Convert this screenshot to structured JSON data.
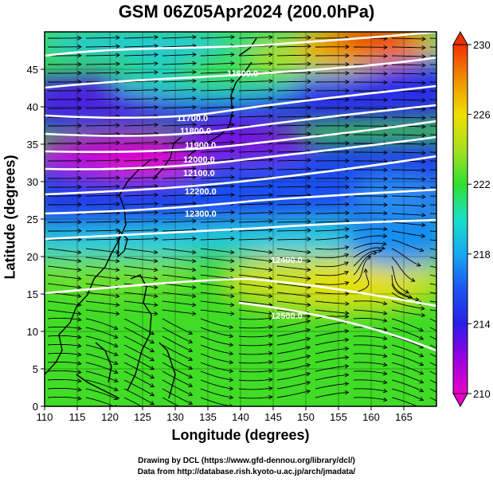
{
  "title": "GSM 06Z05Apr2024 (200.0hPa)",
  "x_axis": {
    "label": "Longitude (degrees)",
    "range": [
      110,
      170
    ],
    "ticks": [
      "110",
      "115",
      "120",
      "125",
      "130",
      "135",
      "140",
      "145",
      "150",
      "155",
      "160",
      "165"
    ]
  },
  "y_axis": {
    "label": "Latitude  (degrees)",
    "range": [
      0,
      50
    ],
    "ticks": [
      "0",
      "5",
      "10",
      "15",
      "20",
      "25",
      "30",
      "35",
      "40",
      "45"
    ]
  },
  "colorbar": {
    "range": [
      210,
      230
    ],
    "ticks": [
      "210",
      "214",
      "218",
      "222",
      "226",
      "230"
    ],
    "colors": [
      "#e800c8",
      "#9a00e0",
      "#2a1ee8",
      "#1a55f0",
      "#18a8f0",
      "#18e0c8",
      "#30e030",
      "#a8e020",
      "#f0e000",
      "#f09000",
      "#f03000"
    ]
  },
  "contours": [
    {
      "label": "11600.0",
      "color": "#ffffff"
    },
    {
      "label": "11700.0",
      "color": "#ffffff"
    },
    {
      "label": "11800.0",
      "color": "#ffffff"
    },
    {
      "label": "11900.0",
      "color": "#ffffff"
    },
    {
      "label": "12000.0",
      "color": "#ffffff"
    },
    {
      "label": "12100.0",
      "color": "#ffffff"
    },
    {
      "label": "12200.0",
      "color": "#ffffff"
    },
    {
      "label": "12300.0",
      "color": "#ffffff"
    },
    {
      "label": "12400.0",
      "color": "#ffffff"
    },
    {
      "label": "12500.0",
      "color": "#ffffff"
    }
  ],
  "credits": {
    "line1": "Drawing by DCL (https://www.gfd-dennou.org/library/dcl/)",
    "line2": "Data from http://database.rish.kyoto-u.ac.jp/arch/jmadata/"
  }
}
